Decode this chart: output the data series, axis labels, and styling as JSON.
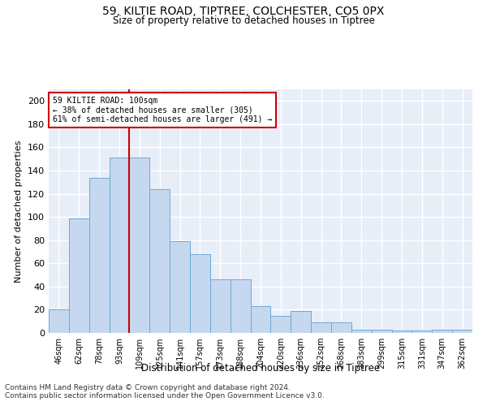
{
  "title": "59, KILTIE ROAD, TIPTREE, COLCHESTER, CO5 0PX",
  "subtitle": "Size of property relative to detached houses in Tiptree",
  "xlabel": "Distribution of detached houses by size in Tiptree",
  "ylabel": "Number of detached properties",
  "categories": [
    "46sqm",
    "62sqm",
    "78sqm",
    "93sqm",
    "109sqm",
    "125sqm",
    "141sqm",
    "157sqm",
    "173sqm",
    "188sqm",
    "204sqm",
    "220sqm",
    "236sqm",
    "252sqm",
    "268sqm",
    "283sqm",
    "299sqm",
    "315sqm",
    "331sqm",
    "347sqm",
    "362sqm"
  ],
  "values": [
    20,
    99,
    134,
    151,
    151,
    124,
    79,
    68,
    46,
    46,
    23,
    15,
    19,
    9,
    9,
    3,
    3,
    2,
    2,
    3,
    3
  ],
  "bar_color": "#c5d8f0",
  "bar_edge_color": "#6aaad4",
  "vline_x": 3.5,
  "vline_color": "#cc0000",
  "annotation_line1": "59 KILTIE ROAD: 100sqm",
  "annotation_line2": "← 38% of detached houses are smaller (305)",
  "annotation_line3": "61% of semi-detached houses are larger (491) →",
  "annotation_box_color": "#cc0000",
  "ylim": [
    0,
    210
  ],
  "yticks": [
    0,
    20,
    40,
    60,
    80,
    100,
    120,
    140,
    160,
    180,
    200
  ],
  "footer1": "Contains HM Land Registry data © Crown copyright and database right 2024.",
  "footer2": "Contains public sector information licensed under the Open Government Licence v3.0.",
  "bg_color": "#ffffff",
  "plot_bg_color": "#e8eef8",
  "grid_color": "#ffffff"
}
